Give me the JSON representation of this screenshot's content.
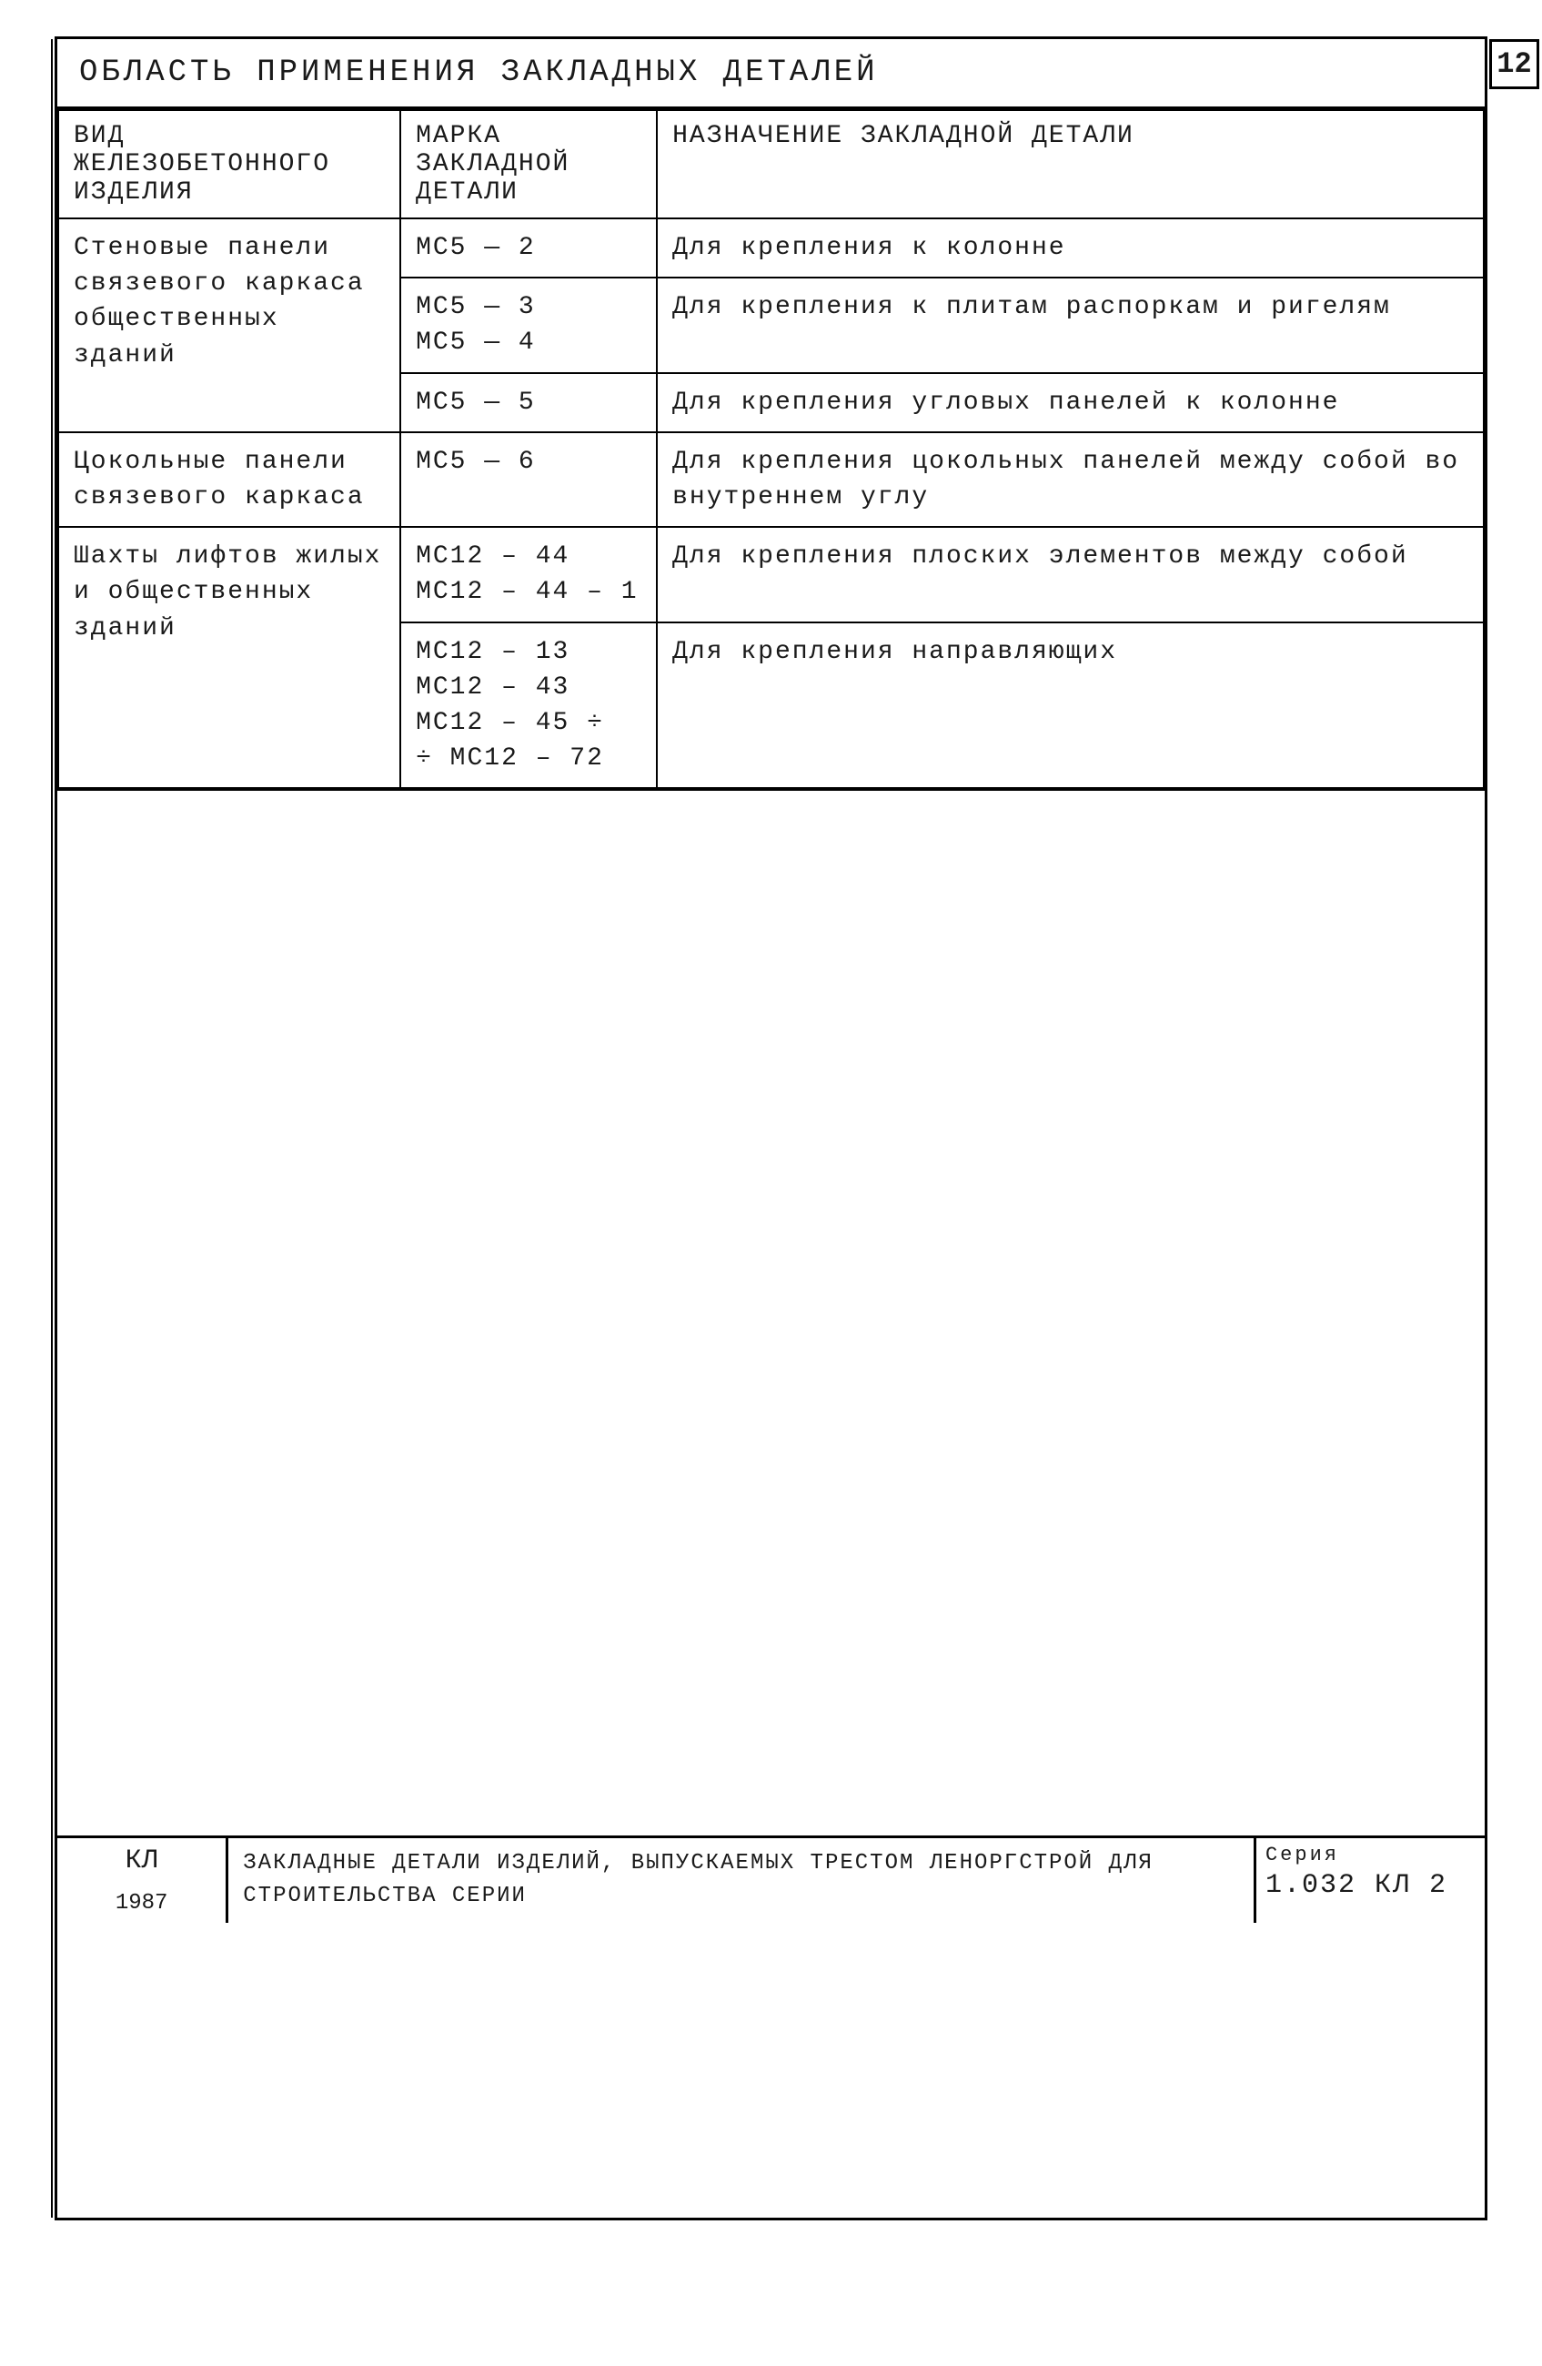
{
  "page_number": "12",
  "title": "Область применения закладных деталей",
  "columns": {
    "col1": "Вид железобетонного изделия",
    "col2": "Марка закладной детали",
    "col3": "Назначение закладной детали"
  },
  "rows": [
    {
      "type": "Стеновые панели связевого каркаса общественных зданий",
      "type_rowspan": 3,
      "mark": "МС5 — 2",
      "purpose": "Для крепления к колонне"
    },
    {
      "mark": "МС5 — 3\nМС5 — 4",
      "purpose": "Для крепления к плитам распоркам и ригелям"
    },
    {
      "mark": "МС5 — 5",
      "purpose": "Для крепления угловых панелей к колонне"
    },
    {
      "type": "Цокольные панели связевого каркаса",
      "type_rowspan": 1,
      "mark": "МС5 — 6",
      "purpose": "Для крепления цокольных панелей между собой во внутреннем углу"
    },
    {
      "type": "Шахты лифтов жилых и общественных зданий",
      "type_rowspan": 2,
      "mark": "МС12 – 44\nМС12 – 44 – 1",
      "purpose": "Для крепления плоских элементов между собой"
    },
    {
      "mark": "МС12 – 13\nМС12 – 43\nМС12 – 45 ÷\n÷ МС12 – 72",
      "purpose": "Для крепления направляющих"
    }
  ],
  "footer": {
    "left_line1": "КЛ",
    "left_line2": "1987",
    "mid": "Закладные детали изделий, выпускаемых трестом Леноргстрой для строительства серии",
    "series_label": "Серия",
    "series_code": "1.032 КЛ 2"
  }
}
